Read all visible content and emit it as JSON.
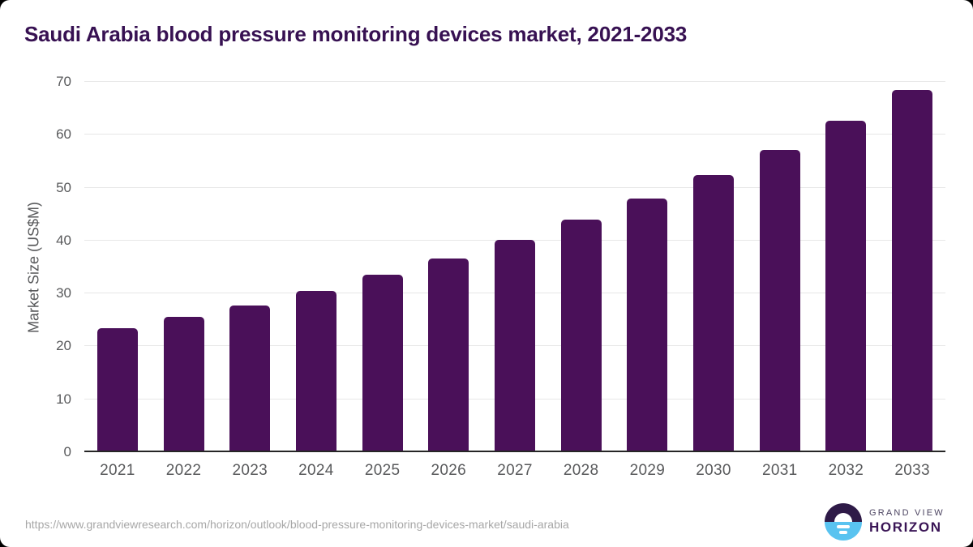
{
  "title": "Saudi Arabia blood pressure monitoring devices market, 2021-2033",
  "chart_data": {
    "type": "bar",
    "title": "Saudi Arabia blood pressure monitoring devices market, 2021-2033",
    "categories": [
      "2021",
      "2022",
      "2023",
      "2024",
      "2025",
      "2026",
      "2027",
      "2028",
      "2029",
      "2030",
      "2031",
      "2032",
      "2033"
    ],
    "values": [
      23.5,
      25.6,
      27.8,
      30.5,
      33.5,
      36.6,
      40.2,
      44.0,
      47.9,
      52.4,
      57.1,
      62.6,
      68.4
    ],
    "xlabel": "",
    "ylabel": "Market Size (US$M)",
    "ylim": [
      0,
      70
    ],
    "yticks": [
      0,
      10,
      20,
      30,
      40,
      50,
      60,
      70
    ],
    "grid": true,
    "legend_position": "none",
    "bar_color": "#4a1059"
  },
  "colors": {
    "title_text": "#371152",
    "bar": "#4a1059",
    "axis_line": "#262626",
    "gridline": "#e7e7e7",
    "tick_label": "#58595b",
    "url_text": "#a7a7a7",
    "logo_dark": "#2e1a47",
    "logo_blue": "#59c3f0",
    "logo_horizon_text": "#3a1556",
    "logo_grandview_text": "#4b4360"
  },
  "footer": {
    "source_url": "https://www.grandviewresearch.com/horizon/outlook/blood-pressure-monitoring-devices-market/saudi-arabia",
    "logo": {
      "top_text": "GRAND VIEW",
      "bottom_text": "HORIZON"
    }
  }
}
